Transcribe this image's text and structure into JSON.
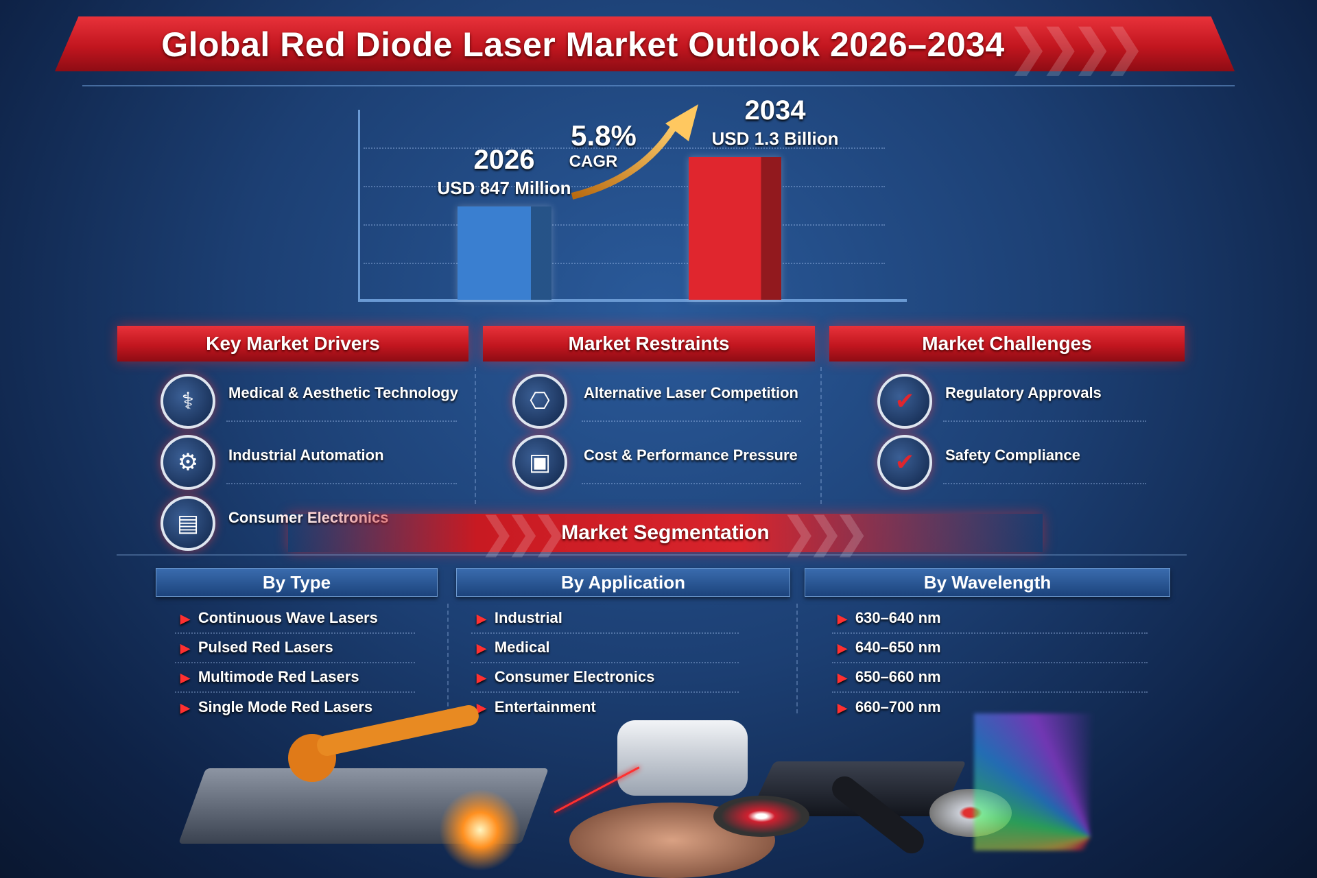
{
  "title": "Global Red Diode Laser Market Outlook 2026–2034",
  "chart_data": {
    "type": "bar",
    "categories": [
      "2026",
      "2034"
    ],
    "values": [
      847,
      1300
    ],
    "value_labels": [
      "USD 847 Million",
      "USD 1.3 Billion"
    ],
    "bar_colors": [
      "#3a7fd0",
      "#e0262e"
    ],
    "annotation": {
      "value": "5.8%",
      "label": "CAGR"
    },
    "grid": true,
    "xlabel": "",
    "ylabel": ""
  },
  "drivers": {
    "title": "Key Market Drivers",
    "items": [
      "Medical & Aesthetic Technology",
      "Industrial Automation",
      "Consumer Electronics"
    ]
  },
  "restraints": {
    "title": "Market Restraints",
    "items": [
      "Alternative Laser Competition",
      "Cost & Performance Pressure"
    ]
  },
  "challenges": {
    "title": "Market Challenges",
    "items": [
      "Regulatory Approvals",
      "Safety Compliance"
    ]
  },
  "segmentation": {
    "title": "Market Segmentation",
    "by_type": {
      "title": "By Type",
      "items": [
        "Continuous Wave Lasers",
        "Pulsed Red Lasers",
        "Multimode Red Lasers",
        "Single Mode Red Lasers"
      ]
    },
    "by_application": {
      "title": "By Application",
      "items": [
        "Industrial",
        "Medical",
        "Consumer Electronics",
        "Entertainment"
      ]
    },
    "by_wavelength": {
      "title": "By Wavelength",
      "items": [
        "630–640 nm",
        "640–650 nm",
        "650–660 nm",
        "660–700 nm"
      ]
    }
  },
  "colors": {
    "accent_red": "#d41e26",
    "background_blue": "#1c3f73"
  }
}
